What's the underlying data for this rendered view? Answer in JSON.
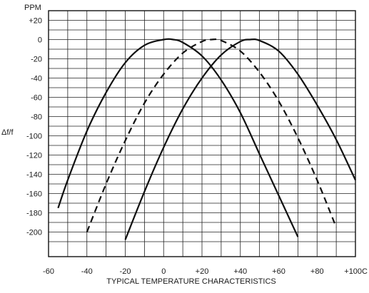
{
  "chart_data": {
    "type": "line",
    "title": "",
    "xlabel": "TYPICAL TEMPERATURE CHARACTERISTICS",
    "ylabel": "Δf/f",
    "y_unit_label": "PPM",
    "xlim": [
      -60,
      100
    ],
    "ylim": [
      -215,
      30
    ],
    "grid": true,
    "legend": "none",
    "x_ticks": [
      -60,
      -40,
      -20,
      0,
      20,
      40,
      60,
      80,
      100
    ],
    "x_tick_labels": [
      "-60",
      "-40",
      "-20",
      "0",
      "+20",
      "+40",
      "+60",
      "+80",
      "+100C"
    ],
    "y_ticks": [
      20,
      0,
      -20,
      -40,
      -60,
      -80,
      -100,
      -120,
      -140,
      -160,
      -180,
      -200
    ],
    "y_tick_labels": [
      "+20",
      "0",
      "-20",
      "-40",
      "-60",
      "-80",
      "-100",
      "-120",
      "-140",
      "-160",
      "-180",
      "-200"
    ],
    "series": [
      {
        "style": "solid",
        "x": [
          -55,
          -50,
          -40,
          -30,
          -20,
          -10,
          0,
          5,
          10,
          20,
          30,
          40,
          50,
          60,
          70
        ],
        "y": [
          -175,
          -146,
          -95,
          -55,
          -24,
          -6,
          0,
          0,
          -3,
          -17,
          -42,
          -76,
          -119,
          -162,
          -205
        ]
      },
      {
        "style": "dashed",
        "x": [
          -40,
          -30,
          -20,
          -10,
          0,
          10,
          20,
          25,
          30,
          40,
          50,
          60,
          70,
          80,
          90
        ],
        "y": [
          -200,
          -150,
          -105,
          -66,
          -36,
          -14,
          -2,
          0,
          -1,
          -12,
          -34,
          -64,
          -102,
          -146,
          -195
        ]
      },
      {
        "style": "solid",
        "x": [
          -20,
          -10,
          0,
          10,
          20,
          30,
          40,
          45,
          50,
          60,
          70,
          80,
          90,
          100
        ],
        "y": [
          -208,
          -158,
          -112,
          -72,
          -40,
          -16,
          -2,
          0,
          -1,
          -12,
          -36,
          -68,
          -104,
          -146
        ]
      }
    ]
  }
}
